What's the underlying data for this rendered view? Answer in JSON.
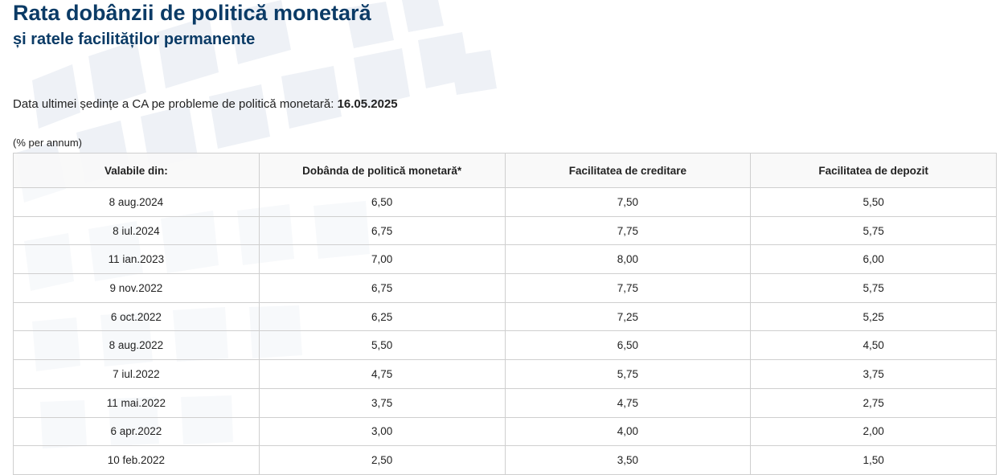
{
  "page": {
    "title": "Rata dobânzii de politică monetară",
    "subtitle": "și ratele facilităților permanente",
    "meeting_label": "Data ultimei ședințe a CA pe probleme de politică monetară: ",
    "meeting_date": "16.05.2025",
    "unit_note": "(% per annum)"
  },
  "colors": {
    "title": "#0b3b66",
    "pattern": "#eef1f6"
  },
  "table": {
    "headers": [
      "Valabile din:",
      "Dobânda de politică monetară*",
      "Facilitatea de creditare",
      "Facilitatea de depozit"
    ],
    "rows": [
      [
        "8 aug.2024",
        "6,50",
        "7,50",
        "5,50"
      ],
      [
        "8 iul.2024",
        "6,75",
        "7,75",
        "5,75"
      ],
      [
        "11 ian.2023",
        "7,00",
        "8,00",
        "6,00"
      ],
      [
        "9 nov.2022",
        "6,75",
        "7,75",
        "5,75"
      ],
      [
        "6 oct.2022",
        "6,25",
        "7,25",
        "5,25"
      ],
      [
        "8 aug.2022",
        "5,50",
        "6,50",
        "4,50"
      ],
      [
        "7 iul.2022",
        "4,75",
        "5,75",
        "3,75"
      ],
      [
        "11 mai.2022",
        "3,75",
        "4,75",
        "2,75"
      ],
      [
        "6 apr.2022",
        "3,00",
        "4,00",
        "2,00"
      ],
      [
        "10 feb.2022",
        "2,50",
        "3,50",
        "1,50"
      ]
    ]
  }
}
